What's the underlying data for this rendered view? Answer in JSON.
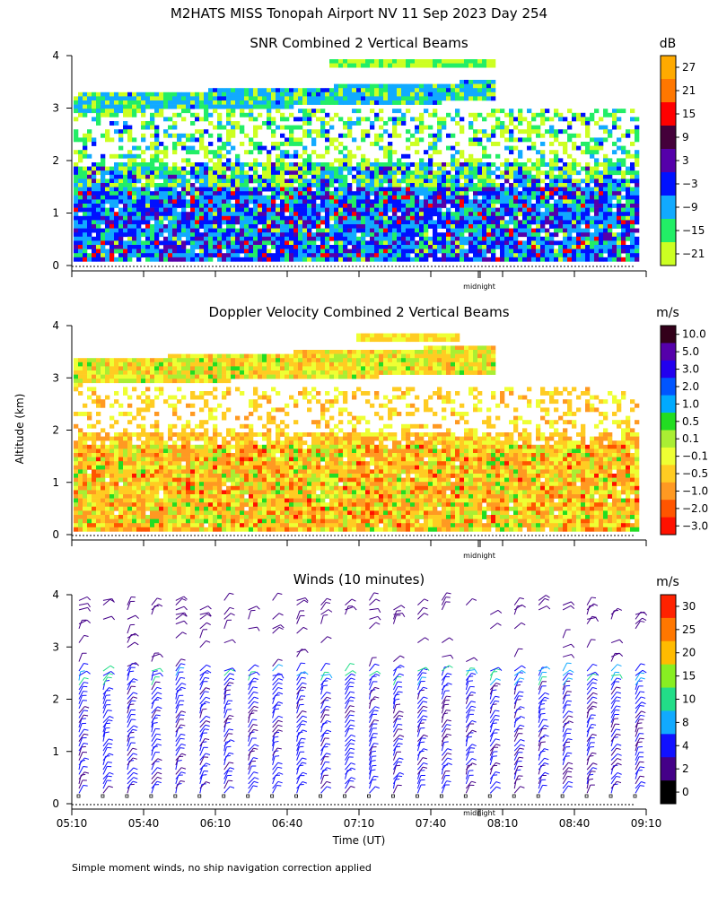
{
  "title": "M2HATS MISS Tonopah Airport NV  11 Sep 2023 Day 254",
  "ylabel": "Altitude (km)",
  "xlabel": "Time (UT)",
  "footnote": "Simple moment winds, no ship navigation correction applied",
  "midnight_label": "midnight",
  "chart_data": [
    {
      "type": "heatmap",
      "title": "SNR Combined 2 Vertical Beams",
      "ylim": [
        0,
        4
      ],
      "y_ticks": [
        "0",
        "1",
        "2",
        "3",
        "4"
      ],
      "colorbar": {
        "unit": "dB",
        "labels": [
          "27",
          "21",
          "15",
          "9",
          "3",
          "−3",
          "−9",
          "−15",
          "−21"
        ],
        "colors": [
          "#ffaa00",
          "#ff7700",
          "#ff0000",
          "#44003a",
          "#5500aa",
          "#0011ff",
          "#11aaff",
          "#22ee66",
          "#ccff22"
        ]
      },
      "midnight_marker": true
    },
    {
      "type": "heatmap",
      "title": "Doppler Velocity Combined 2 Vertical Beams",
      "ylim": [
        0,
        4
      ],
      "y_ticks": [
        "0",
        "1",
        "2",
        "3",
        "4"
      ],
      "colorbar": {
        "unit": "m/s",
        "labels": [
          "10.0",
          "5.0",
          "3.0",
          "2.0",
          "1.0",
          "0.5",
          "0.1",
          "−0.1",
          "−0.5",
          "−1.0",
          "−2.0",
          "−3.0"
        ],
        "colors": [
          "#33001a",
          "#5500aa",
          "#2200ee",
          "#0055ff",
          "#00aaff",
          "#22dd22",
          "#aaee33",
          "#eeff33",
          "#ffcc22",
          "#ff9922",
          "#ff5500",
          "#ff1100"
        ]
      },
      "midnight_marker": true
    },
    {
      "type": "scatter",
      "title": "Winds (10 minutes)",
      "ylim": [
        0,
        4
      ],
      "y_ticks": [
        "0",
        "1",
        "2",
        "3",
        "4"
      ],
      "x_ticks": [
        "05:10",
        "05:40",
        "06:10",
        "06:40",
        "07:10",
        "07:40",
        "08:10",
        "08:40",
        "09:10"
      ],
      "xlim": [
        "05:10",
        "09:10"
      ],
      "colorbar": {
        "unit": "m/s",
        "labels": [
          "30",
          "25",
          "20",
          "15",
          "10",
          "8",
          "4",
          "2",
          "0"
        ],
        "colors": [
          "#ff2200",
          "#ff7700",
          "#ffbb00",
          "#88ee22",
          "#22dd88",
          "#11aaff",
          "#1111ff",
          "#440088",
          "#000000"
        ]
      },
      "midnight_marker": true
    }
  ]
}
